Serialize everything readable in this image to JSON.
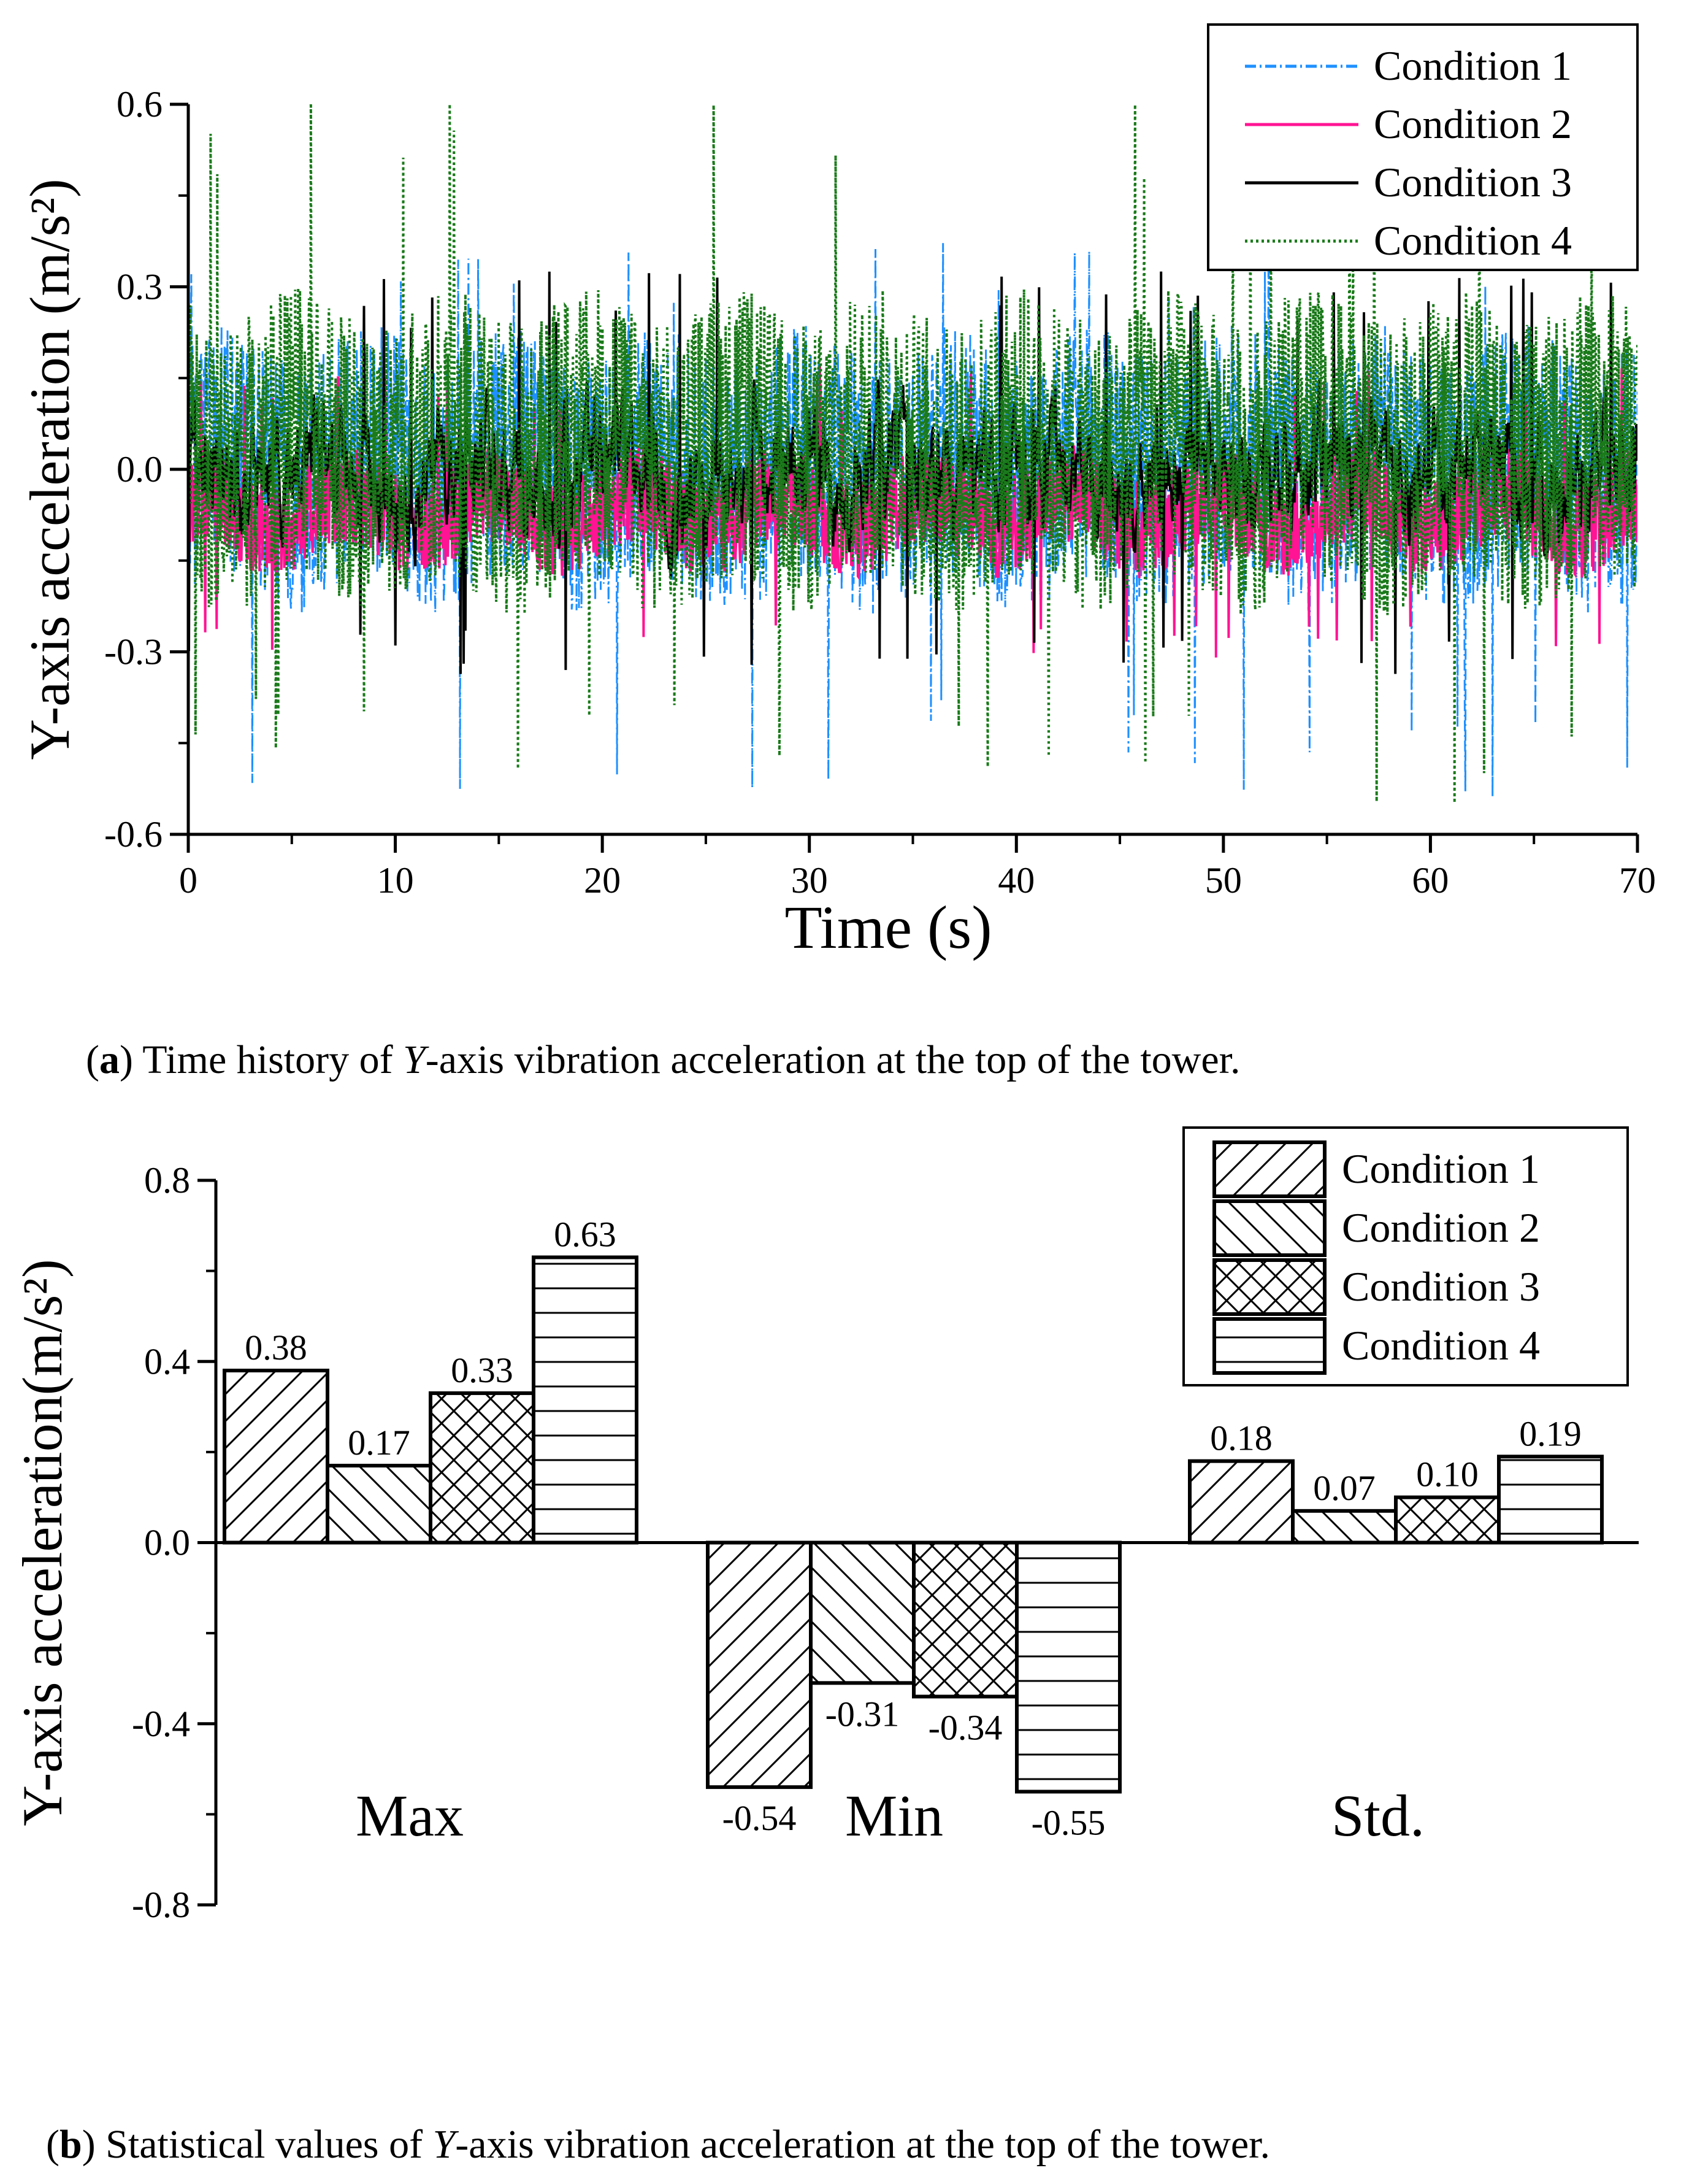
{
  "chart_data": [
    {
      "type": "line",
      "panel": "a",
      "title": "",
      "xlabel": "Time (s)",
      "ylabel": "Y-axis acceleration (m/s²)",
      "xlim": [
        0,
        70
      ],
      "ylim": [
        -0.6,
        0.6
      ],
      "xticks": [
        "0",
        "10",
        "20",
        "30",
        "40",
        "50",
        "60",
        "70"
      ],
      "yticks": [
        "-0.6",
        "-0.3",
        "0.0",
        "0.3",
        "0.6"
      ],
      "legend_position": "top-right",
      "series": [
        {
          "name": "Condition 1",
          "color": "#1e90ff",
          "style": "dash-dot",
          "mean": 0.0,
          "amplitude": 0.13,
          "max": 0.38,
          "min": -0.54
        },
        {
          "name": "Condition 2",
          "color": "#ff1493",
          "style": "solid",
          "mean": -0.07,
          "amplitude": 0.05,
          "max": 0.17,
          "min": -0.31
        },
        {
          "name": "Condition 3",
          "color": "#000000",
          "style": "solid",
          "mean": 0.0,
          "amplitude": 0.07,
          "max": 0.33,
          "min": -0.34
        },
        {
          "name": "Condition 4",
          "color": "#1a7a1a",
          "style": "dotted",
          "mean": 0.03,
          "amplitude": 0.15,
          "max": 0.63,
          "min": -0.55
        }
      ]
    },
    {
      "type": "bar",
      "panel": "b",
      "title": "",
      "xlabel": "",
      "ylabel": "Y-axis acceleration(m/s²)",
      "ylim": [
        -0.8,
        0.8
      ],
      "yticks": [
        "-0.8",
        "-0.4",
        "0.0",
        "0.4",
        "0.8"
      ],
      "categories": [
        "Max",
        "Min",
        "Std."
      ],
      "legend_position": "top-right",
      "series": [
        {
          "name": "Condition 1",
          "pattern": "diag-up",
          "values": [
            0.38,
            -0.54,
            0.18
          ],
          "labels": [
            "0.38",
            "-0.54",
            "0.18"
          ]
        },
        {
          "name": "Condition 2",
          "pattern": "diag-down",
          "values": [
            0.17,
            -0.31,
            0.07
          ],
          "labels": [
            "0.17",
            "-0.31",
            "0.07"
          ]
        },
        {
          "name": "Condition 3",
          "pattern": "cross",
          "values": [
            0.33,
            -0.34,
            0.1
          ],
          "labels": [
            "0.33",
            "-0.34",
            "0.10"
          ]
        },
        {
          "name": "Condition 4",
          "pattern": "horizontal",
          "values": [
            0.63,
            -0.55,
            0.19
          ],
          "labels": [
            "0.63",
            "-0.55",
            "0.19"
          ]
        }
      ]
    }
  ],
  "captions": {
    "a": {
      "letter": "a",
      "pre": ") Time history of ",
      "var": "Y",
      "post": "-axis vibration acceleration at the top of the tower."
    },
    "b": {
      "letter": "b",
      "pre": ") Statistical values of ",
      "var": "Y",
      "post": "-axis vibration acceleration at the top of the tower."
    }
  }
}
